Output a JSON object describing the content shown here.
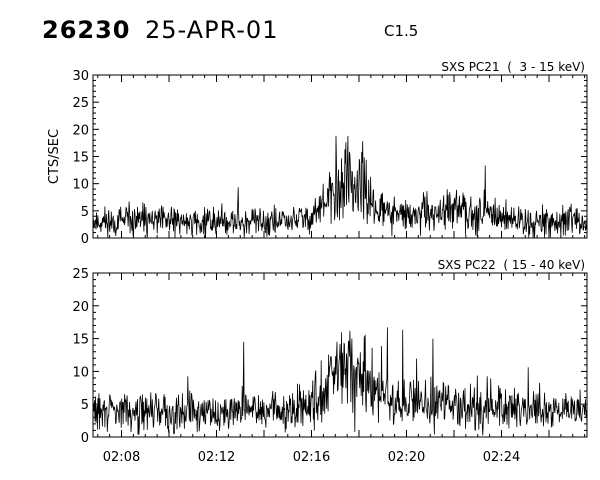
{
  "header": {
    "event_id": "26230",
    "date": "25-APR-01",
    "goes_class": "C1.5"
  },
  "chart_data": [
    {
      "type": "line",
      "title": "SXS PC21  (  3 - 15 keV)",
      "ylabel": "CTS/SEC",
      "xlabel": "",
      "ylim": [
        0,
        30
      ],
      "yticks": [
        0,
        5,
        10,
        15,
        20,
        25,
        30
      ],
      "xlim": [
        "02:06:48",
        "02:27:36"
      ],
      "xticks": [],
      "grid": false,
      "series": [
        {
          "x": [
            "02:07:00",
            "02:08:00",
            "02:09:00",
            "02:10:00",
            "02:11:00",
            "02:12:00",
            "02:13:00",
            "02:14:00",
            "02:15:00",
            "02:16:00",
            "02:16:30",
            "02:17:00",
            "02:17:20",
            "02:17:40",
            "02:18:00",
            "02:18:30",
            "02:19:00",
            "02:20:00",
            "02:21:00",
            "02:22:00",
            "02:23:00",
            "02:24:00",
            "02:25:00",
            "02:26:00",
            "02:27:00"
          ],
          "values": [
            3,
            3,
            3,
            3,
            3,
            3,
            3,
            3,
            3,
            4,
            6,
            8,
            10,
            11,
            9,
            7,
            5,
            4,
            4,
            5,
            5,
            4,
            3,
            3,
            3
          ]
        }
      ]
    },
    {
      "type": "line",
      "title": "SXS PC22  ( 15 - 40 keV)",
      "xlabel": "",
      "ylabel": "",
      "ylim": [
        0,
        25
      ],
      "yticks": [
        0,
        5,
        10,
        15,
        20,
        25
      ],
      "xlim": [
        "02:06:48",
        "02:27:36"
      ],
      "xticks": [
        "02:08",
        "02:12",
        "02:16",
        "02:20",
        "02:24"
      ],
      "grid": false,
      "series": [
        {
          "x": [
            "02:07:00",
            "02:08:00",
            "02:09:00",
            "02:10:00",
            "02:11:00",
            "02:12:00",
            "02:13:00",
            "02:14:00",
            "02:15:00",
            "02:16:00",
            "02:16:30",
            "02:17:00",
            "02:17:20",
            "02:17:40",
            "02:18:00",
            "02:18:30",
            "02:19:00",
            "02:20:00",
            "02:21:00",
            "02:22:00",
            "02:23:00",
            "02:24:00",
            "02:25:00",
            "02:26:00",
            "02:27:00"
          ],
          "values": [
            4,
            4,
            4,
            4,
            4,
            4,
            4,
            4,
            4,
            5,
            7,
            9,
            10,
            10,
            9,
            7,
            6,
            5,
            5,
            5,
            5,
            5,
            4,
            4,
            4
          ]
        }
      ]
    }
  ]
}
